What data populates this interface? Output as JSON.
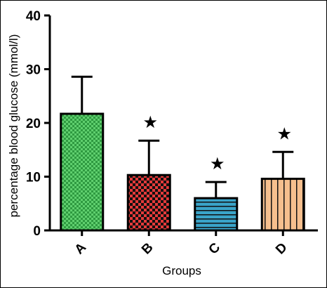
{
  "chart_data": {
    "type": "bar",
    "xlabel": "Groups",
    "ylabel": "percentage blood glucose (mmol/l)",
    "ylim": [
      0,
      40
    ],
    "yticks": [
      "0",
      "10",
      "20",
      "30",
      "40"
    ],
    "categories": [
      "A",
      "B",
      "C",
      "D"
    ],
    "values": [
      21.7,
      10.3,
      6.0,
      9.6
    ],
    "error_upper": [
      28.6,
      16.7,
      9.0,
      14.6
    ],
    "significance": [
      "",
      "★",
      "★",
      "★"
    ],
    "bar_colors": [
      "#3cb550",
      "#e53a3a",
      "#3aa4c8",
      "#f6bf8e"
    ],
    "bar_patterns": [
      "checker",
      "checker",
      "horizontal-lines",
      "vertical-lines"
    ],
    "grid": false,
    "legend": "none"
  }
}
